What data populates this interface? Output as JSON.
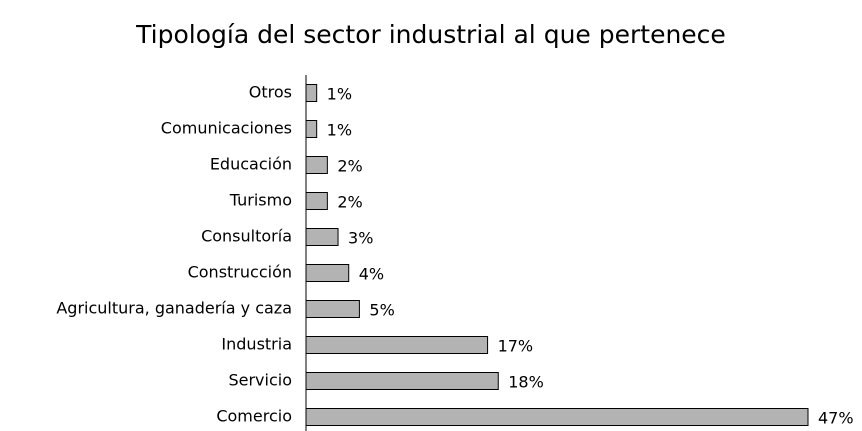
{
  "chart_data": {
    "type": "hbar",
    "title": "Tipología del sector industrial al que pertenece",
    "categories": [
      "Otros",
      "Comunicaciones",
      "Educación",
      "Turismo",
      "Consultoría",
      "Construcción",
      "Agricultura, ganadería y caza",
      "Industria",
      "Servicio",
      "Comercio"
    ],
    "values": [
      1,
      1,
      2,
      2,
      3,
      4,
      5,
      17,
      18,
      47
    ],
    "value_labels": [
      "1%",
      "1%",
      "2%",
      "2%",
      "3%",
      "4%",
      "5%",
      "17%",
      "18%",
      "47%"
    ],
    "color": "#b3b3b3"
  }
}
